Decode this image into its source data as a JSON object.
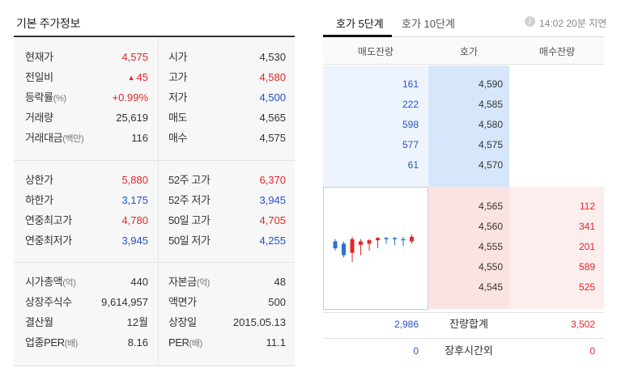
{
  "basic_info": {
    "title": "기본 주가정보",
    "block1": [
      {
        "l1": "현재가",
        "v1": "4,575",
        "c1": "up",
        "l2": "시가",
        "v2": "4,530",
        "c2": "neutral"
      },
      {
        "l1": "전일비",
        "v1": "45",
        "c1": "up",
        "tri": "▲",
        "l2": "고가",
        "v2": "4,580",
        "c2": "up"
      },
      {
        "l1": "등락률",
        "u1": "(%)",
        "v1": "+0.99%",
        "c1": "up",
        "l2": "저가",
        "v2": "4,500",
        "c2": "down"
      },
      {
        "l1": "거래량",
        "v1": "25,619",
        "c1": "neutral",
        "l2": "매도",
        "v2": "4,565",
        "c2": "neutral"
      },
      {
        "l1": "거래대금",
        "u1": "(백만)",
        "v1": "116",
        "c1": "neutral",
        "l2": "매수",
        "v2": "4,575",
        "c2": "neutral"
      }
    ],
    "block2": [
      {
        "l1": "상한가",
        "v1": "5,880",
        "c1": "up",
        "l2": "52주 고가",
        "v2": "6,370",
        "c2": "up"
      },
      {
        "l1": "하한가",
        "v1": "3,175",
        "c1": "down",
        "l2": "52주 저가",
        "v2": "3,945",
        "c2": "down"
      },
      {
        "l1": "연중최고가",
        "v1": "4,780",
        "c1": "up",
        "l2": "50일 고가",
        "v2": "4,705",
        "c2": "up"
      },
      {
        "l1": "연중최저가",
        "v1": "3,945",
        "c1": "down",
        "l2": "50일 저가",
        "v2": "4,255",
        "c2": "down"
      }
    ],
    "block3": [
      {
        "l1": "시가총액",
        "u1": "(억)",
        "v1": "440",
        "c1": "neutral",
        "l2": "자본금",
        "u2": "(억)",
        "v2": "48",
        "c2": "neutral"
      },
      {
        "l1": "상장주식수",
        "v1": "9,614,957",
        "c1": "neutral",
        "l2": "액면가",
        "v2": "500",
        "c2": "neutral"
      },
      {
        "l1": "결산월",
        "v1": "12월",
        "c1": "neutral",
        "l2": "상장일",
        "v2": "2015.05.13",
        "c2": "neutral"
      },
      {
        "l1": "업종PER",
        "u1": "(배)",
        "v1": "8.16",
        "c1": "neutral",
        "l2": "PER",
        "u2": "(배)",
        "v2": "11.1",
        "c2": "neutral"
      }
    ]
  },
  "orderbook": {
    "tabs": [
      "호가 5단계",
      "호가 10단계"
    ],
    "info_icon": "i",
    "update_time": "14:02 20분 지연",
    "headers": {
      "ask": "매도잔량",
      "price": "호가",
      "bid": "매수잔량"
    },
    "asks": [
      {
        "vol": "161",
        "price": "4,590"
      },
      {
        "vol": "222",
        "price": "4,585"
      },
      {
        "vol": "598",
        "price": "4,580"
      },
      {
        "vol": "577",
        "price": "4,575"
      },
      {
        "vol": "61",
        "price": "4,570"
      }
    ],
    "bids": [
      {
        "price": "4,565",
        "vol": "112"
      },
      {
        "price": "4,560",
        "vol": "341"
      },
      {
        "price": "4,555",
        "vol": "201"
      },
      {
        "price": "4,550",
        "vol": "589"
      },
      {
        "price": "4,545",
        "vol": "525"
      }
    ],
    "total": {
      "label": "잔량합계",
      "ask": "2,986",
      "bid": "3,502"
    },
    "after_hours": {
      "label": "장후시간외",
      "ask": "0",
      "bid": "0"
    }
  },
  "mini_chart": {
    "candles": [
      {
        "open": 4530,
        "close": 4500,
        "high": 4540,
        "low": 4490
      },
      {
        "open": 4520,
        "close": 4470,
        "high": 4530,
        "low": 4460
      },
      {
        "open": 4480,
        "close": 4540,
        "high": 4550,
        "low": 4440
      },
      {
        "open": 4515,
        "close": 4530,
        "high": 4540,
        "low": 4470
      },
      {
        "open": 4520,
        "close": 4535,
        "high": 4540,
        "low": 4490
      },
      {
        "open": 4535,
        "close": 4545,
        "high": 4550,
        "low": 4500
      },
      {
        "open": 4545,
        "close": 4540,
        "high": 4550,
        "low": 4520
      },
      {
        "open": 4545,
        "close": 4540,
        "high": 4550,
        "low": 4515
      },
      {
        "open": 4540,
        "close": 4535,
        "high": 4550,
        "low": 4510
      },
      {
        "open": 4530,
        "close": 4550,
        "high": 4560,
        "low": 4520
      }
    ],
    "colors": {
      "up": "#e42525",
      "down": "#2a6fd6"
    }
  }
}
